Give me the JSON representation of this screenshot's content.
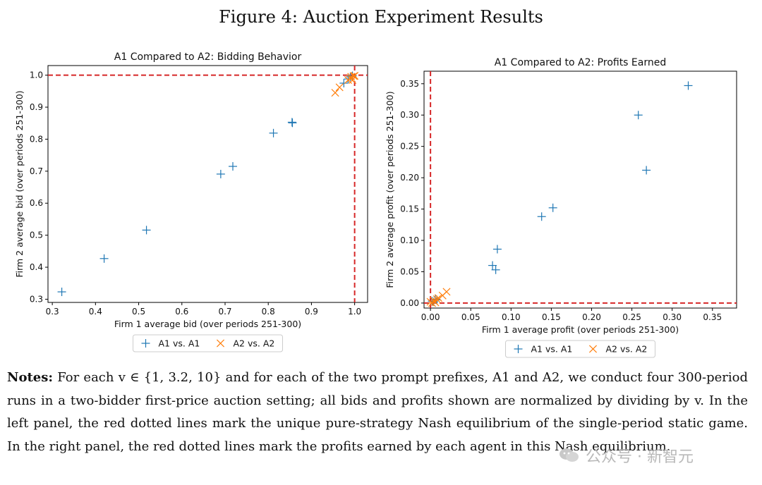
{
  "figure_title": "Figure 4: Auction Experiment Results",
  "notes": {
    "label": "Notes:",
    "text": "For each v ∈ {1, 3.2, 10} and for each of the two prompt prefixes, A1 and A2, we conduct four 300-period runs in a two-bidder first-price auction setting; all bids and profits shown are normalized by dividing by v. In the left panel, the red dotted lines mark the unique pure-strategy Nash equilibrium of the single-period static game. In the right panel, the red dotted lines mark the profits earned by each agent in this Nash equilibrium."
  },
  "watermark": "公众号 · 新智元",
  "colors": {
    "a1": "#1f77b4",
    "a2": "#ff7f0e",
    "ref": "#d62728"
  },
  "chart_data": [
    {
      "type": "scatter",
      "title": "A1 Compared to A2: Bidding Behavior",
      "xlabel": "Firm 1 average bid (over periods 251-300)",
      "ylabel": "Firm 2 average bid (over periods 251-300)",
      "xlim": [
        0.29,
        1.03
      ],
      "ylim": [
        0.29,
        1.03
      ],
      "xticks": [
        0.3,
        0.4,
        0.5,
        0.6,
        0.7,
        0.8,
        0.9,
        1.0
      ],
      "xticklabels": [
        "0.3",
        "0.4",
        "0.5",
        "0.6",
        "0.7",
        "0.8",
        "0.9",
        "1.0"
      ],
      "yticks": [
        0.3,
        0.4,
        0.5,
        0.6,
        0.7,
        0.8,
        0.9,
        1.0
      ],
      "yticklabels": [
        "0.3",
        "0.4",
        "0.5",
        "0.6",
        "0.7",
        "0.8",
        "0.9",
        "1.0"
      ],
      "ref_x": 1.0,
      "ref_y": 1.0,
      "legend_position": "below",
      "series": [
        {
          "name": "A1 vs. A1",
          "marker": "plus",
          "color": "#1f77b4",
          "points": [
            [
              0.322,
              0.323
            ],
            [
              0.42,
              0.427
            ],
            [
              0.518,
              0.516
            ],
            [
              0.69,
              0.691
            ],
            [
              0.718,
              0.715
            ],
            [
              0.812,
              0.819
            ],
            [
              0.855,
              0.853
            ],
            [
              0.856,
              0.851
            ],
            [
              0.975,
              0.975
            ],
            [
              0.985,
              0.988
            ],
            [
              0.99,
              0.995
            ],
            [
              0.995,
              0.998
            ]
          ]
        },
        {
          "name": "A2 vs. A2",
          "marker": "x",
          "color": "#ff7f0e",
          "points": [
            [
              0.955,
              0.945
            ],
            [
              0.965,
              0.962
            ],
            [
              0.985,
              0.985
            ],
            [
              0.99,
              0.99
            ],
            [
              0.992,
              0.995
            ],
            [
              0.998,
              0.997
            ],
            [
              0.995,
              0.985
            ],
            [
              1.0,
              0.998
            ]
          ]
        }
      ]
    },
    {
      "type": "scatter",
      "title": "A1 Compared to A2: Profits Earned",
      "xlabel": "Firm 1 average profit (over periods 251-300)",
      "ylabel": "Firm 2 average profit (over periods 251-300)",
      "xlim": [
        -0.008,
        0.38
      ],
      "ylim": [
        -0.008,
        0.37
      ],
      "xticks": [
        0.0,
        0.05,
        0.1,
        0.15,
        0.2,
        0.25,
        0.3,
        0.35
      ],
      "xticklabels": [
        "0.00",
        "0.05",
        "0.10",
        "0.15",
        "0.20",
        "0.25",
        "0.30",
        "0.35"
      ],
      "yticks": [
        0.0,
        0.05,
        0.1,
        0.15,
        0.2,
        0.25,
        0.3,
        0.35
      ],
      "yticklabels": [
        "0.00",
        "0.05",
        "0.10",
        "0.15",
        "0.20",
        "0.25",
        "0.30",
        "0.35"
      ],
      "ref_x": 0.0,
      "ref_y": 0.0,
      "legend_position": "below",
      "series": [
        {
          "name": "A1 vs. A1",
          "marker": "plus",
          "color": "#1f77b4",
          "points": [
            [
              0.32,
              0.347
            ],
            [
              0.258,
              0.3
            ],
            [
              0.268,
              0.212
            ],
            [
              0.152,
              0.152
            ],
            [
              0.138,
              0.138
            ],
            [
              0.083,
              0.086
            ],
            [
              0.077,
              0.06
            ],
            [
              0.081,
              0.053
            ],
            [
              0.002,
              0.003
            ],
            [
              0.004,
              0.002
            ],
            [
              0.006,
              0.006
            ],
            [
              0.008,
              0.005
            ]
          ]
        },
        {
          "name": "A2 vs. A2",
          "marker": "x",
          "color": "#ff7f0e",
          "points": [
            [
              0.0,
              0.002
            ],
            [
              0.002,
              0.0
            ],
            [
              0.004,
              0.004
            ],
            [
              0.006,
              0.001
            ],
            [
              0.008,
              0.006
            ],
            [
              0.01,
              0.008
            ],
            [
              0.015,
              0.012
            ],
            [
              0.02,
              0.018
            ]
          ]
        }
      ]
    }
  ]
}
